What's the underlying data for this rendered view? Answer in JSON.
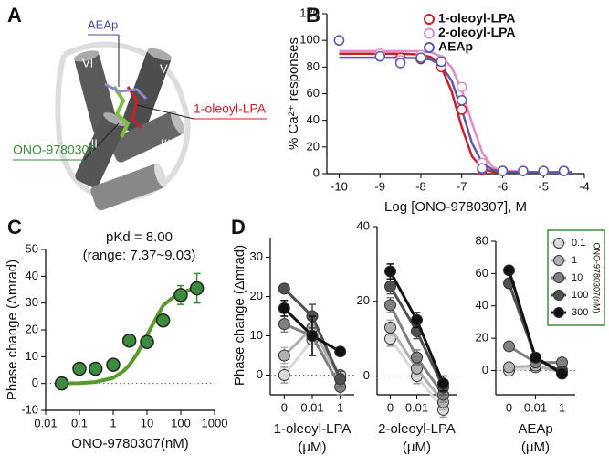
{
  "panel_a": {
    "panel": "A",
    "labels": [
      "AEAp",
      "V",
      "VI",
      "III",
      "1-oleoyl-LPA",
      "VII",
      "ONO-9780307",
      "I"
    ]
  },
  "chart_data": [
    {
      "type": "scatter",
      "panel": "B",
      "x_label": "Log [ONO-9780307], M",
      "y_label": "% Ca²⁺ responses",
      "xlim": [
        -10.3,
        -4
      ],
      "xticks": [
        -10,
        -9,
        -8,
        -7,
        -6,
        -5,
        -4
      ],
      "ylim": [
        0,
        120
      ],
      "yticks": [
        0,
        20,
        40,
        60,
        80,
        100,
        120
      ],
      "legend": "upper right",
      "marker": "open",
      "x": [
        -10,
        -9,
        -8.5,
        -8,
        -7.5,
        -7,
        -6.5,
        -6,
        -5.5,
        -5,
        -4.5
      ],
      "fit_x": [
        -10,
        -8.5,
        -8,
        -7.75,
        -7.5,
        -7.25,
        -7,
        -6.75,
        -6.5,
        -6.25,
        -6,
        -5,
        -4.3
      ],
      "series": [
        {
          "name": "1-oleoyl-LPA",
          "color": "#cc1f2b",
          "values": [
            100,
            88,
            87,
            86,
            80,
            48,
            3,
            2,
            2,
            2,
            2
          ],
          "fit_values": [
            90,
            90,
            89.4,
            87.4,
            80,
            62,
            35,
            13,
            4,
            1.5,
            1,
            1,
            1
          ]
        },
        {
          "name": "2-oleoyl-LPA",
          "color": "#e58ac8",
          "values": [
            100,
            90,
            85,
            89,
            85,
            65,
            8,
            2,
            2,
            2,
            2
          ],
          "fit_values": [
            92,
            92,
            91.8,
            91,
            88,
            80,
            63,
            38,
            16,
            5,
            2,
            1,
            1
          ]
        },
        {
          "name": "AEAp",
          "color": "#5a5aa8",
          "values": [
            100,
            88,
            83,
            87,
            84,
            55,
            4,
            2,
            2,
            2,
            2
          ],
          "fit_values": [
            87,
            87,
            86.6,
            85.5,
            81,
            70,
            48,
            23,
            8,
            3,
            1.5,
            1,
            1
          ]
        }
      ]
    },
    {
      "type": "scatter",
      "panel": "C",
      "annotations": [
        "pKd = 8.00",
        "(range: 7.37~9.03)"
      ],
      "x_label": "ONO-9780307(nM)",
      "y_label": "Phase change (Δmrad)",
      "log_x": true,
      "xlim": [
        0.01,
        1000
      ],
      "xticks": [
        0.01,
        0.1,
        1,
        10,
        100,
        1000
      ],
      "ylim": [
        -10,
        50
      ],
      "yticks": [
        -10,
        0,
        10,
        20,
        30,
        40,
        50
      ],
      "zero_line": "dotted",
      "marker": "filled",
      "x": [
        0.03,
        0.1,
        0.3,
        1,
        3,
        10,
        30,
        100,
        300
      ],
      "fit_x": [
        0.03,
        0.1,
        0.3,
        1,
        2,
        3,
        5,
        10,
        20,
        30,
        50,
        100,
        200,
        300
      ],
      "series": [
        {
          "color": "#3d8b3d",
          "values": [
            0,
            5.5,
            5.5,
            7,
            16,
            15.5,
            23.5,
            33,
            35.5
          ],
          "errors": [
            1,
            1,
            1,
            1.5,
            1.5,
            1,
            1.5,
            3.5,
            5.5
          ],
          "fit_values": [
            0.03,
            0.14,
            0.53,
            2.1,
            4.6,
            6.9,
            10.9,
            18,
            25.1,
            29.1,
            31.4,
            33.9,
            35,
            35.4
          ]
        }
      ]
    },
    {
      "type": "line",
      "panel": "D",
      "y_label": "Phase change (Δmrad)",
      "x_label": [
        "1-oleoyl-LPA",
        "(μM)"
      ],
      "categories": [
        "0",
        "0.01",
        "1"
      ],
      "ylim": [
        -5,
        35
      ],
      "yticks": [
        0,
        10,
        20,
        30
      ],
      "zero_line": "dotted",
      "series": [
        {
          "color": "#d9d9d9",
          "values": [
            0,
            9,
            0
          ],
          "errors": [
            2,
            1,
            1
          ]
        },
        {
          "color": "#b0b0b0",
          "values": [
            5,
            12,
            -1
          ],
          "errors": [
            2,
            2,
            1.5
          ]
        },
        {
          "color": "#808080",
          "values": [
            13,
            10,
            -3
          ],
          "errors": [
            2,
            5,
            2
          ]
        },
        {
          "color": "#505050",
          "values": [
            22,
            15,
            -1
          ],
          "errors": [
            1,
            3,
            2
          ]
        },
        {
          "color": "#111111",
          "values": [
            17,
            10,
            6
          ],
          "errors": [
            2,
            5,
            1
          ]
        }
      ]
    },
    {
      "type": "line",
      "x_label": [
        "2-oleoyl-LPA",
        "(μM)"
      ],
      "categories": [
        "0",
        "0.01",
        "1"
      ],
      "ylim": [
        -5,
        40
      ],
      "yticks": [
        0,
        20,
        40
      ],
      "zero_line": "dotted",
      "series": [
        {
          "color": "#d9d9d9",
          "values": [
            10,
            0,
            -9
          ],
          "errors": [
            2,
            2,
            2
          ]
        },
        {
          "color": "#b0b0b0",
          "values": [
            13,
            2,
            -7
          ],
          "errors": [
            2,
            2,
            2
          ]
        },
        {
          "color": "#808080",
          "values": [
            19,
            5,
            -5
          ],
          "errors": [
            2,
            2,
            2
          ]
        },
        {
          "color": "#505050",
          "values": [
            24,
            12,
            -3
          ],
          "errors": [
            2,
            2,
            2
          ]
        },
        {
          "color": "#111111",
          "values": [
            28,
            15,
            -2
          ],
          "errors": [
            2,
            2,
            2
          ]
        }
      ]
    },
    {
      "type": "line",
      "x_label": [
        "AEAp",
        "(μM)"
      ],
      "categories": [
        "0",
        "0.01",
        "1"
      ],
      "ylim": [
        -15,
        80
      ],
      "yticks": [
        0,
        20,
        40,
        60,
        80
      ],
      "zero_line": "dotted",
      "legend": "upper right",
      "legend_title": "ONO-9780307(nM)",
      "legend_color": "#3d8b3d",
      "series": [
        {
          "name": "0.1",
          "color": "#d9d9d9",
          "values": [
            0,
            2,
            0
          ],
          "errors": [
            1,
            1,
            1
          ]
        },
        {
          "name": "1",
          "color": "#b0b0b0",
          "values": [
            2,
            3,
            -1
          ],
          "errors": [
            1,
            1,
            1
          ]
        },
        {
          "name": "10",
          "color": "#808080",
          "values": [
            15,
            5,
            5
          ],
          "errors": [
            1,
            1,
            1
          ]
        },
        {
          "name": "100",
          "color": "#505050",
          "values": [
            54,
            8,
            -1
          ],
          "errors": [
            1,
            1,
            1
          ]
        },
        {
          "name": "300",
          "color": "#111111",
          "values": [
            62,
            8,
            -2
          ],
          "errors": [
            2,
            1,
            1
          ]
        }
      ]
    }
  ]
}
